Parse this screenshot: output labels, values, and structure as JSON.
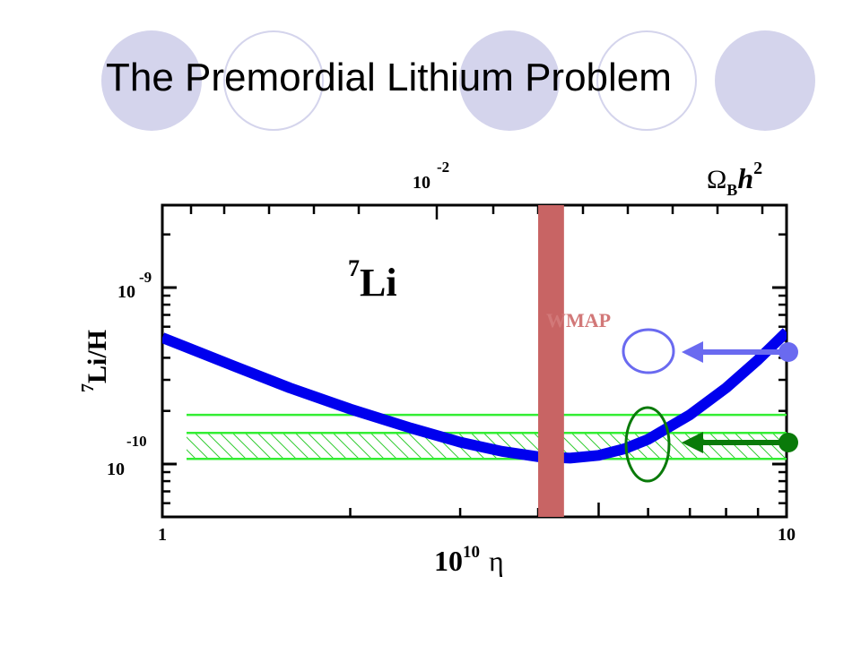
{
  "slide": {
    "title": "The Premordial Lithium Problem"
  },
  "chart_data": {
    "type": "line",
    "xlabel_base": "10",
    "xlabel_exp": "10",
    "xlabel_symbol": "η",
    "x_scale": "log",
    "xlim": [
      1,
      10
    ],
    "x_tick_labels": [
      "1",
      "10"
    ],
    "top_axis_label": "Ω",
    "top_axis_label_sub": "B",
    "top_axis_label_tail": "h",
    "top_axis_label_sup": "2",
    "top_tick_base": "10",
    "top_tick_exp": "-2",
    "ylabel_sup": "7",
    "ylabel": "Li/H",
    "y_scale": "log",
    "y_tick_labels": [
      {
        "base": "10",
        "exp": "-9",
        "value": 1e-09
      },
      {
        "base": "10",
        "exp": "-10",
        "value": 1e-10
      }
    ],
    "annotation_sup": "7",
    "annotation": "Li",
    "wmap_label": "WMAP",
    "wmap_band_x": [
      4.0,
      4.4
    ],
    "prediction_curve": {
      "x": [
        1.0,
        1.3,
        1.6,
        2.0,
        2.5,
        3.0,
        3.5,
        4.0,
        4.5,
        5.0,
        5.5,
        6.0,
        7.0,
        8.0,
        9.0,
        10.0
      ],
      "y": [
        5.2e-10,
        3.6e-10,
        2.7e-10,
        2.05e-10,
        1.6e-10,
        1.33e-10,
        1.18e-10,
        1.1e-10,
        1.08e-10,
        1.12e-10,
        1.22e-10,
        1.38e-10,
        1.9e-10,
        2.7e-10,
        3.9e-10,
        5.6e-10
      ]
    },
    "observed_band": {
      "y_low": 1.07e-10,
      "y_high": 1.5e-10,
      "y_upper_limit": 1.9e-10
    },
    "markers": [
      {
        "name": "predicted-value-marker",
        "color": "#6a6af0"
      },
      {
        "name": "observed-value-marker",
        "color": "#0a7a0a"
      }
    ],
    "colors": {
      "curve": "#0000ee",
      "band_lines": "#33ee33",
      "hatch": "#33cc33",
      "wmap": "#c86464",
      "wmap_label": "#d27878",
      "predicted_marker": "#6a6af0",
      "observed_marker": "#0a7a0a",
      "deco": "#d4d4ec"
    }
  }
}
